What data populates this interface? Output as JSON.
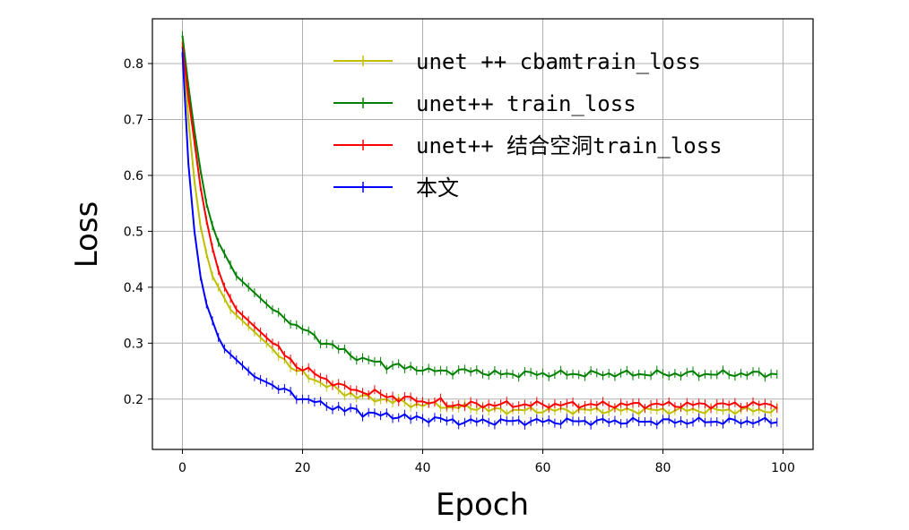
{
  "chart_data": {
    "type": "line",
    "title": "",
    "xlabel": "Epoch",
    "ylabel": "Loss",
    "xlim": [
      -5,
      105
    ],
    "ylim": [
      0.11,
      0.88
    ],
    "xticks": [
      0,
      20,
      40,
      60,
      80,
      100
    ],
    "yticks": [
      0.2,
      0.3,
      0.4,
      0.5,
      0.6,
      0.7,
      0.8
    ],
    "xtick_labels": [
      "0",
      "20",
      "40",
      "60",
      "80",
      "100"
    ],
    "ytick_labels": [
      "0.2",
      "0.3",
      "0.4",
      "0.5",
      "0.6",
      "0.7",
      "0.8"
    ],
    "grid": true,
    "legend_position": "top-right",
    "marker": "plus",
    "series": [
      {
        "name": "unet ++ cbamtrain_loss",
        "color": "#bfbf00",
        "values": [
          0.84,
          0.7,
          0.59,
          0.51,
          0.46,
          0.42,
          0.4,
          0.38,
          0.36,
          0.35,
          0.34,
          0.33,
          0.32,
          0.31,
          0.3,
          0.29,
          0.28,
          0.27,
          0.26,
          0.25,
          0.245,
          0.24,
          0.235,
          0.23,
          0.225,
          0.22,
          0.215,
          0.21,
          0.21,
          0.205,
          0.205,
          0.2,
          0.2,
          0.2,
          0.2,
          0.195,
          0.195,
          0.195,
          0.19,
          0.19,
          0.19,
          0.19,
          0.19,
          0.19,
          0.185,
          0.185,
          0.185,
          0.185,
          0.185,
          0.185,
          0.185,
          0.18,
          0.18,
          0.18,
          0.18,
          0.18,
          0.18,
          0.18,
          0.18,
          0.18,
          0.18,
          0.18,
          0.18,
          0.18,
          0.18,
          0.18,
          0.18,
          0.18,
          0.18,
          0.18,
          0.18,
          0.18,
          0.18,
          0.18,
          0.18,
          0.18,
          0.18,
          0.18,
          0.18,
          0.18,
          0.18,
          0.18,
          0.18,
          0.18,
          0.18,
          0.18,
          0.18,
          0.18,
          0.18,
          0.18,
          0.18,
          0.18,
          0.18,
          0.18,
          0.18,
          0.18,
          0.18,
          0.18,
          0.18,
          0.18
        ]
      },
      {
        "name": "unet++ train_loss",
        "color": "#008000",
        "values": [
          0.85,
          0.76,
          0.68,
          0.61,
          0.55,
          0.51,
          0.48,
          0.46,
          0.44,
          0.42,
          0.41,
          0.4,
          0.39,
          0.38,
          0.37,
          0.36,
          0.35,
          0.345,
          0.34,
          0.33,
          0.325,
          0.32,
          0.31,
          0.305,
          0.3,
          0.295,
          0.29,
          0.285,
          0.28,
          0.275,
          0.27,
          0.27,
          0.265,
          0.265,
          0.26,
          0.26,
          0.26,
          0.255,
          0.255,
          0.255,
          0.255,
          0.25,
          0.25,
          0.25,
          0.25,
          0.25,
          0.25,
          0.25,
          0.25,
          0.25,
          0.25,
          0.245,
          0.245,
          0.245,
          0.245,
          0.245,
          0.245,
          0.245,
          0.245,
          0.245,
          0.245,
          0.245,
          0.245,
          0.245,
          0.245,
          0.245,
          0.245,
          0.245,
          0.245,
          0.245,
          0.245,
          0.245,
          0.245,
          0.245,
          0.245,
          0.245,
          0.245,
          0.245,
          0.245,
          0.245,
          0.245,
          0.245,
          0.245,
          0.245,
          0.245,
          0.245,
          0.245,
          0.245,
          0.245,
          0.245,
          0.245,
          0.245,
          0.245,
          0.245,
          0.245,
          0.245,
          0.245,
          0.245,
          0.245,
          0.245
        ]
      },
      {
        "name": "unet++ 结合空洞train_loss",
        "color": "#ff0000",
        "values": [
          0.83,
          0.74,
          0.66,
          0.58,
          0.52,
          0.47,
          0.43,
          0.4,
          0.38,
          0.36,
          0.35,
          0.34,
          0.33,
          0.32,
          0.31,
          0.3,
          0.29,
          0.28,
          0.27,
          0.26,
          0.255,
          0.25,
          0.245,
          0.24,
          0.235,
          0.23,
          0.225,
          0.22,
          0.22,
          0.215,
          0.215,
          0.21,
          0.21,
          0.21,
          0.205,
          0.205,
          0.2,
          0.2,
          0.2,
          0.2,
          0.195,
          0.195,
          0.195,
          0.195,
          0.19,
          0.19,
          0.19,
          0.19,
          0.19,
          0.19,
          0.19,
          0.19,
          0.19,
          0.19,
          0.19,
          0.19,
          0.19,
          0.19,
          0.19,
          0.19,
          0.19,
          0.19,
          0.19,
          0.19,
          0.19,
          0.19,
          0.19,
          0.19,
          0.19,
          0.19,
          0.19,
          0.19,
          0.19,
          0.19,
          0.19,
          0.19,
          0.19,
          0.19,
          0.19,
          0.19,
          0.19,
          0.19,
          0.19,
          0.19,
          0.19,
          0.19,
          0.19,
          0.19,
          0.19,
          0.19,
          0.19,
          0.19,
          0.19,
          0.19,
          0.19,
          0.19,
          0.19,
          0.19,
          0.19,
          0.19
        ]
      },
      {
        "name": "本文",
        "color": "#0000ff",
        "values": [
          0.82,
          0.62,
          0.5,
          0.42,
          0.37,
          0.34,
          0.31,
          0.29,
          0.28,
          0.27,
          0.26,
          0.25,
          0.24,
          0.235,
          0.23,
          0.225,
          0.22,
          0.215,
          0.21,
          0.205,
          0.2,
          0.2,
          0.195,
          0.19,
          0.19,
          0.185,
          0.185,
          0.18,
          0.18,
          0.18,
          0.175,
          0.175,
          0.175,
          0.17,
          0.17,
          0.17,
          0.17,
          0.17,
          0.165,
          0.165,
          0.165,
          0.165,
          0.165,
          0.165,
          0.16,
          0.16,
          0.16,
          0.16,
          0.16,
          0.16,
          0.16,
          0.16,
          0.16,
          0.16,
          0.16,
          0.16,
          0.16,
          0.16,
          0.16,
          0.16,
          0.16,
          0.16,
          0.16,
          0.16,
          0.16,
          0.16,
          0.16,
          0.16,
          0.16,
          0.16,
          0.16,
          0.16,
          0.16,
          0.16,
          0.16,
          0.16,
          0.16,
          0.16,
          0.16,
          0.16,
          0.16,
          0.16,
          0.16,
          0.16,
          0.16,
          0.16,
          0.16,
          0.16,
          0.16,
          0.16,
          0.16,
          0.16,
          0.16,
          0.16,
          0.16,
          0.16,
          0.16,
          0.16,
          0.16,
          0.16
        ]
      }
    ]
  }
}
